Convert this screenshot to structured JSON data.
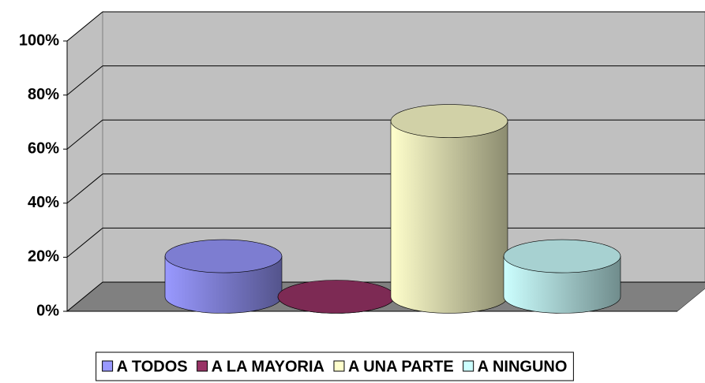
{
  "chart_data": {
    "type": "bar3d",
    "categories": [
      null
    ],
    "series": [
      {
        "name": "A TODOS",
        "color": "#9999ff",
        "values": [
          15
        ]
      },
      {
        "name": "A LA MAYORIA",
        "color": "#993366",
        "values": [
          0
        ]
      },
      {
        "name": "A UNA PARTE",
        "color": "#ffffcc",
        "values": [
          65
        ]
      },
      {
        "name": "A NINGUNO",
        "color": "#ccffff",
        "values": [
          15
        ]
      }
    ],
    "ylim": [
      0,
      100
    ],
    "yticks": [
      {
        "value": 0,
        "label": "0%"
      },
      {
        "value": 20,
        "label": "20%"
      },
      {
        "value": 40,
        "label": "40%"
      },
      {
        "value": 60,
        "label": "60%"
      },
      {
        "value": 80,
        "label": "80%"
      },
      {
        "value": 100,
        "label": "100%"
      }
    ],
    "grid": true,
    "legend": "bottom"
  }
}
